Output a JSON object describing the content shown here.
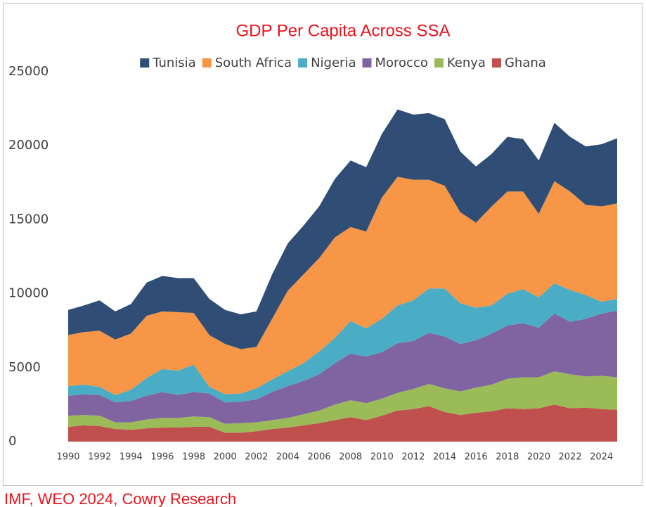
{
  "chart_data": {
    "type": "stacked_area",
    "title": "GDP Per Capita Across SSA",
    "source": "IMF, WEO 2024, Cowry Research",
    "x": [
      1990,
      1991,
      1992,
      1993,
      1994,
      1995,
      1996,
      1997,
      1998,
      1999,
      2000,
      2001,
      2002,
      2003,
      2004,
      2005,
      2006,
      2007,
      2008,
      2009,
      2010,
      2011,
      2012,
      2013,
      2014,
      2015,
      2016,
      2017,
      2018,
      2019,
      2020,
      2021,
      2022,
      2023,
      2024,
      2025
    ],
    "xlim": [
      1990,
      2025
    ],
    "xticks": [
      1990,
      1992,
      1994,
      1996,
      1998,
      2000,
      2002,
      2004,
      2006,
      2008,
      2010,
      2012,
      2014,
      2016,
      2018,
      2020,
      2022,
      2024
    ],
    "ylim": [
      0,
      25000
    ],
    "yticks": [
      0,
      5000,
      10000,
      15000,
      20000,
      25000
    ],
    "grid": false,
    "legend": "top",
    "series": [
      {
        "name": "Tunisia",
        "color": "#2f4d75",
        "values": [
          1700,
          1800,
          2050,
          1900,
          2000,
          2250,
          2400,
          2300,
          2350,
          2450,
          2300,
          2350,
          2400,
          3000,
          3200,
          3300,
          3500,
          3950,
          4500,
          4350,
          4300,
          4550,
          4400,
          4500,
          4500,
          4100,
          3800,
          3550,
          3700,
          3550,
          3600,
          3950,
          3700,
          3950,
          4200,
          4400
        ]
      },
      {
        "name": "South Africa",
        "color": "#f79646",
        "values": [
          3450,
          3550,
          3800,
          3750,
          3800,
          4200,
          3900,
          3950,
          3500,
          3500,
          3400,
          3000,
          2800,
          4100,
          5450,
          6000,
          6300,
          6800,
          6350,
          6550,
          8200,
          8700,
          8150,
          7350,
          6950,
          6150,
          5750,
          6700,
          6900,
          6600,
          5650,
          6900,
          6650,
          6100,
          6450,
          6450
        ]
      },
      {
        "name": "Nigeria",
        "color": "#4bacc6",
        "values": [
          650,
          650,
          550,
          500,
          750,
          1200,
          1550,
          1650,
          1850,
          450,
          550,
          550,
          750,
          850,
          1000,
          1200,
          1550,
          1700,
          2200,
          1900,
          2250,
          2550,
          2750,
          3000,
          3250,
          2750,
          2200,
          1900,
          2150,
          2300,
          2050,
          2050,
          2150,
          1600,
          800,
          800
        ]
      },
      {
        "name": "Morocco",
        "color": "#8064a2",
        "values": [
          1350,
          1400,
          1400,
          1350,
          1450,
          1600,
          1750,
          1550,
          1650,
          1600,
          1450,
          1450,
          1550,
          1900,
          2150,
          2250,
          2450,
          2800,
          3150,
          3150,
          3150,
          3350,
          3250,
          3450,
          3500,
          3200,
          3200,
          3450,
          3600,
          3650,
          3350,
          3900,
          3550,
          3900,
          4200,
          4500
        ]
      },
      {
        "name": "Kenya",
        "color": "#9bbb59",
        "values": [
          750,
          700,
          700,
          450,
          500,
          600,
          650,
          650,
          700,
          650,
          600,
          650,
          600,
          600,
          650,
          750,
          850,
          1050,
          1150,
          1150,
          1150,
          1200,
          1350,
          1500,
          1600,
          1600,
          1700,
          1800,
          2000,
          2150,
          2100,
          2250,
          2300,
          2100,
          2250,
          2200
        ]
      },
      {
        "name": "Ghana",
        "color": "#c0504d",
        "values": [
          1000,
          1100,
          1050,
          850,
          800,
          900,
          950,
          950,
          1000,
          1000,
          600,
          600,
          700,
          850,
          950,
          1100,
          1250,
          1450,
          1650,
          1450,
          1750,
          2100,
          2200,
          2400,
          2000,
          1800,
          1950,
          2050,
          2250,
          2200,
          2250,
          2500,
          2250,
          2300,
          2200,
          2150
        ]
      }
    ]
  }
}
